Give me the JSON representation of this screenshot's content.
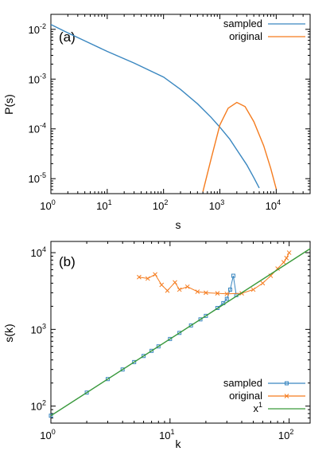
{
  "chart_data": [
    {
      "panel": "(a)",
      "type": "line",
      "xscale": "log",
      "yscale": "log",
      "xlabel": "s",
      "ylabel": "P(s)",
      "xlim": [
        1,
        40000
      ],
      "ylim": [
        5e-06,
        0.02
      ],
      "x_ticks": [
        {
          "value": 1,
          "base": "10",
          "exp": "0"
        },
        {
          "value": 10,
          "base": "10",
          "exp": "1"
        },
        {
          "value": 100,
          "base": "10",
          "exp": "2"
        },
        {
          "value": 1000,
          "base": "10",
          "exp": "3"
        },
        {
          "value": 10000,
          "base": "10",
          "exp": "4"
        }
      ],
      "y_ticks": [
        {
          "value": 1e-05,
          "base": "10",
          "exp": "-5"
        },
        {
          "value": 0.0001,
          "base": "10",
          "exp": "-4"
        },
        {
          "value": 0.001,
          "base": "10",
          "exp": "-3"
        },
        {
          "value": 0.01,
          "base": "10",
          "exp": "-2"
        }
      ],
      "legend_position": "top-right",
      "series": [
        {
          "name": "sampled",
          "color": "#3a87c0",
          "points": [
            [
              1,
              0.0125
            ],
            [
              2,
              0.0085
            ],
            [
              5,
              0.0052
            ],
            [
              10,
              0.0036
            ],
            [
              30,
              0.0021
            ],
            [
              100,
              0.0011
            ],
            [
              200,
              0.00062
            ],
            [
              400,
              0.00032
            ],
            [
              700,
              0.00017
            ],
            [
              1000,
              0.000108
            ],
            [
              1500,
              6.2e-05
            ],
            [
              2000,
              3.8e-05
            ],
            [
              3000,
              1.9e-05
            ],
            [
              4000,
              1.05e-05
            ],
            [
              5000,
              6.5e-06
            ]
          ]
        },
        {
          "name": "original",
          "color": "#f57c1f",
          "points": [
            [
              500,
              5.5e-06
            ],
            [
              700,
              2.5e-05
            ],
            [
              1000,
              0.00012
            ],
            [
              1400,
              0.00026
            ],
            [
              2000,
              0.00034
            ],
            [
              2800,
              0.00028
            ],
            [
              4000,
              0.00014
            ],
            [
              6000,
              4.6e-05
            ],
            [
              8000,
              1.6e-05
            ],
            [
              10000,
              6.2e-06
            ]
          ]
        }
      ]
    },
    {
      "panel": "(b)",
      "type": "line",
      "xscale": "log",
      "yscale": "log",
      "xlabel": "k",
      "ylabel": "s(k)",
      "xlim": [
        1,
        150
      ],
      "ylim": [
        60,
        14000
      ],
      "x_ticks": [
        {
          "value": 1,
          "base": "10",
          "exp": "0"
        },
        {
          "value": 10,
          "base": "10",
          "exp": "1"
        },
        {
          "value": 100,
          "base": "10",
          "exp": "2"
        }
      ],
      "y_ticks": [
        {
          "value": 100,
          "base": "10",
          "exp": "2"
        },
        {
          "value": 1000,
          "base": "10",
          "exp": "3"
        },
        {
          "value": 10000,
          "base": "10",
          "exp": "4"
        }
      ],
      "legend_position": "bottom-right",
      "series": [
        {
          "name": "sampled",
          "color": "#3a87c0",
          "marker": "square",
          "points": [
            [
              1,
              75
            ],
            [
              2,
              150
            ],
            [
              3,
              225
            ],
            [
              4,
              300
            ],
            [
              5,
              375
            ],
            [
              6,
              450
            ],
            [
              7,
              525
            ],
            [
              8,
              600
            ],
            [
              10,
              750
            ],
            [
              12,
              900
            ],
            [
              15,
              1125
            ],
            [
              18,
              1350
            ],
            [
              20,
              1500
            ],
            [
              25,
              1900
            ],
            [
              28,
              2200
            ],
            [
              30,
              2500
            ],
            [
              32,
              3300
            ],
            [
              34,
              5000
            ],
            [
              36,
              2800
            ]
          ]
        },
        {
          "name": "original",
          "color": "#f57c1f",
          "marker": "cross",
          "points": [
            [
              5.5,
              4800
            ],
            [
              6.5,
              4600
            ],
            [
              7.5,
              5200
            ],
            [
              8.5,
              3800
            ],
            [
              9.5,
              3200
            ],
            [
              11,
              4100
            ],
            [
              12,
              3300
            ],
            [
              14,
              3600
            ],
            [
              17,
              3100
            ],
            [
              20,
              3000
            ],
            [
              25,
              2950
            ],
            [
              30,
              2900
            ],
            [
              40,
              2950
            ],
            [
              50,
              3300
            ],
            [
              60,
              4000
            ],
            [
              70,
              5000
            ],
            [
              80,
              6200
            ],
            [
              90,
              7500
            ],
            [
              95,
              8500
            ],
            [
              100,
              10000
            ]
          ]
        },
        {
          "name": "x1",
          "legend_base": "x",
          "legend_exp": "1",
          "color": "#3a9a3a",
          "points": [
            [
              1,
              75
            ],
            [
              150,
              11250
            ]
          ]
        }
      ]
    }
  ]
}
